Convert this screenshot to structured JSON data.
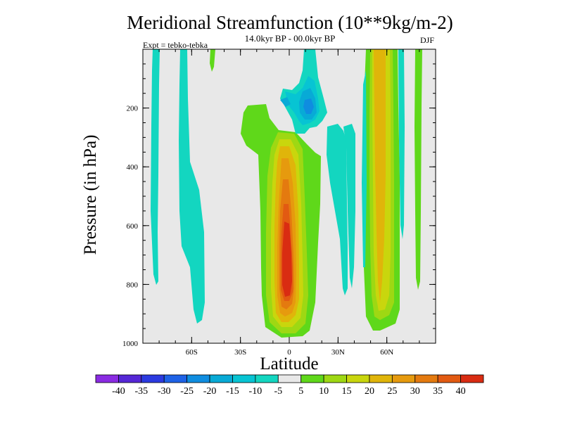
{
  "chart_data": {
    "type": "heatmap",
    "title": "Meridional Streamfunction (10**9kg/m-2)",
    "subtitle_center": "14.0kyr BP - 00.0kyr BP",
    "subtitle_left": "Expt = tebko-tebka",
    "subtitle_right": "DJF",
    "xlabel": "Latitude",
    "ylabel": "Pressure (in hPa)",
    "xlim": [
      -90,
      90
    ],
    "ylim": [
      0,
      1000
    ],
    "y_inverted": true,
    "x_ticks": [
      {
        "value": -60,
        "label": "60S"
      },
      {
        "value": -30,
        "label": "30S"
      },
      {
        "value": 0,
        "label": "0"
      },
      {
        "value": 30,
        "label": "30N"
      },
      {
        "value": 60,
        "label": "60N"
      }
    ],
    "y_ticks": [
      {
        "value": 200,
        "label": "200"
      },
      {
        "value": 400,
        "label": "400"
      },
      {
        "value": 600,
        "label": "600"
      },
      {
        "value": 800,
        "label": "800"
      },
      {
        "value": 1000,
        "label": "1000"
      }
    ],
    "background_color": "#e8e8e8",
    "colorbar": {
      "levels": [
        "-40",
        "-35",
        "-30",
        "-25",
        "-20",
        "-15",
        "-10",
        "-5",
        "5",
        "10",
        "15",
        "20",
        "25",
        "30",
        "35",
        "40"
      ],
      "colors": [
        "#8a2be2",
        "#5527d6",
        "#2b3ae0",
        "#1e62e6",
        "#0f8de0",
        "#08aad6",
        "#07c4d3",
        "#13d6c0",
        "#e8e8e8",
        "#5fd81a",
        "#9ed813",
        "#c9d60d",
        "#e0b50a",
        "#e69a0e",
        "#e47a0f",
        "#e25a12",
        "#d92c12"
      ]
    },
    "features": [
      {
        "name": "tropical-positive-cell",
        "center": [
          -3,
          520
        ],
        "max_value": 40,
        "lat_range": [
          -13,
          8
        ],
        "p_range": [
          200,
          980
        ]
      },
      {
        "name": "upper-negative-cell",
        "center": [
          12,
          200
        ],
        "min_value": -20,
        "lat_range": [
          0,
          18
        ],
        "p_range": [
          80,
          280
        ]
      },
      {
        "name": "nh-positive-band",
        "center": [
          56,
          450
        ],
        "max_value": 20,
        "lat_range": [
          48,
          64
        ],
        "p_range": [
          0,
          980
        ]
      },
      {
        "name": "sh-negative-streaks",
        "min_value": -10,
        "lat_range": [
          -88,
          -55
        ],
        "p_range": [
          0,
          940
        ]
      },
      {
        "name": "nh-negative-streaks",
        "min_value": -10,
        "lat_range": [
          20,
          40
        ],
        "p_range": [
          120,
          900
        ]
      }
    ]
  }
}
